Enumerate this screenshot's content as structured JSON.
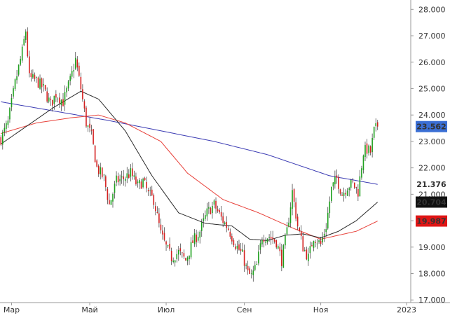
{
  "chart_data": {
    "type": "candlestick",
    "instrument_axis": "right",
    "ylim": [
      16.9,
      28.3
    ],
    "y_ticks": [
      {
        "value": 17.0,
        "label": "17.000"
      },
      {
        "value": 18.0,
        "label": "18.000"
      },
      {
        "value": 19.0,
        "label": "19.000"
      },
      {
        "value": 20.0,
        "label": "20.000"
      },
      {
        "value": 21.0,
        "label": "21.000"
      },
      {
        "value": 22.0,
        "label": "22.000"
      },
      {
        "value": 23.0,
        "label": "23.000"
      },
      {
        "value": 24.0,
        "label": "24.000"
      },
      {
        "value": 25.0,
        "label": "25.000"
      },
      {
        "value": 26.0,
        "label": "26.000"
      },
      {
        "value": 27.0,
        "label": "27.000"
      },
      {
        "value": 28.0,
        "label": "28.000"
      }
    ],
    "x_ticks": [
      {
        "index": 6,
        "label": "Мар"
      },
      {
        "index": 50,
        "label": "Май"
      },
      {
        "index": 93,
        "label": "Июл"
      },
      {
        "index": 137,
        "label": "Сен"
      },
      {
        "index": 180,
        "label": "Ноя"
      },
      {
        "index": 225,
        "label": "2023"
      }
    ],
    "anchors": [
      [
        0,
        23.1
      ],
      [
        4,
        23.7
      ],
      [
        8,
        25.2
      ],
      [
        12,
        26.4
      ],
      [
        14,
        27.2
      ],
      [
        16,
        25.4
      ],
      [
        20,
        25.3
      ],
      [
        24,
        25.0
      ],
      [
        28,
        24.4
      ],
      [
        31,
        24.8
      ],
      [
        35,
        24.5
      ],
      [
        39,
        25.3
      ],
      [
        42,
        26.1
      ],
      [
        45,
        25.0
      ],
      [
        48,
        23.7
      ],
      [
        51,
        23.2
      ],
      [
        54,
        22.0
      ],
      [
        58,
        21.6
      ],
      [
        61,
        20.6
      ],
      [
        65,
        21.5
      ],
      [
        69,
        21.6
      ],
      [
        73,
        21.8
      ],
      [
        77,
        21.3
      ],
      [
        80,
        21.5
      ],
      [
        83,
        21.0
      ],
      [
        86,
        20.8
      ],
      [
        90,
        19.5
      ],
      [
        93,
        19.0
      ],
      [
        96,
        18.6
      ],
      [
        100,
        18.8
      ],
      [
        104,
        18.5
      ],
      [
        108,
        19.2
      ],
      [
        112,
        19.6
      ],
      [
        116,
        20.3
      ],
      [
        120,
        20.6
      ],
      [
        124,
        20.1
      ],
      [
        128,
        19.7
      ],
      [
        132,
        19.1
      ],
      [
        136,
        18.7
      ],
      [
        139,
        18.0
      ],
      [
        141,
        17.9
      ],
      [
        144,
        18.3
      ],
      [
        147,
        19.4
      ],
      [
        151,
        19.4
      ],
      [
        155,
        19.2
      ],
      [
        158,
        18.5
      ],
      [
        161,
        19.6
      ],
      [
        164,
        21.1
      ],
      [
        167,
        19.8
      ],
      [
        170,
        19.0
      ],
      [
        173,
        18.6
      ],
      [
        176,
        19.4
      ],
      [
        180,
        19.1
      ],
      [
        183,
        19.8
      ],
      [
        186,
        21.2
      ],
      [
        189,
        21.6
      ],
      [
        192,
        21.0
      ],
      [
        195,
        21.3
      ],
      [
        198,
        21.4
      ],
      [
        201,
        21.1
      ],
      [
        204,
        22.6
      ],
      [
        206,
        22.7
      ],
      [
        208,
        22.6
      ],
      [
        210,
        23.4
      ],
      [
        212,
        23.56
      ]
    ],
    "series": [
      {
        "name": "",
        "color": "#3b3bb3",
        "width": 1,
        "values_at": [
          [
            0,
            24.5
          ],
          [
            60,
            23.8
          ],
          [
            120,
            23.0
          ],
          [
            150,
            22.5
          ],
          [
            185,
            21.7
          ],
          [
            212,
            21.376
          ]
        ],
        "last": 21.376
      },
      {
        "name": "",
        "color": "#e8413a",
        "width": 1,
        "values_at": [
          [
            0,
            23.3
          ],
          [
            20,
            23.7
          ],
          [
            40,
            23.9
          ],
          [
            55,
            24.0
          ],
          [
            70,
            23.7
          ],
          [
            90,
            23.0
          ],
          [
            105,
            21.8
          ],
          [
            125,
            20.8
          ],
          [
            145,
            20.3
          ],
          [
            165,
            19.7
          ],
          [
            180,
            19.3
          ],
          [
            190,
            19.45
          ],
          [
            200,
            19.6
          ],
          [
            212,
            19.987
          ]
        ],
        "last": 19.987
      },
      {
        "name": "",
        "color": "#2b2b2b",
        "width": 1,
        "values_at": [
          [
            0,
            22.9
          ],
          [
            15,
            23.6
          ],
          [
            30,
            24.3
          ],
          [
            45,
            24.9
          ],
          [
            55,
            24.6
          ],
          [
            70,
            23.4
          ],
          [
            85,
            21.7
          ],
          [
            100,
            20.3
          ],
          [
            115,
            19.9
          ],
          [
            130,
            19.8
          ],
          [
            140,
            19.3
          ],
          [
            150,
            19.25
          ],
          [
            160,
            19.45
          ],
          [
            170,
            19.5
          ],
          [
            180,
            19.35
          ],
          [
            190,
            19.6
          ],
          [
            200,
            20.0
          ],
          [
            212,
            20.704
          ]
        ],
        "last": 20.704
      }
    ],
    "last_close": 23.562,
    "price_labels": [
      {
        "text": "23.562",
        "bg": "#3b6fd4",
        "fg": "#ffffff"
      },
      {
        "text": "21.376",
        "bg": "#ffffff",
        "fg": "#1a2fb0",
        "border": "#ffffff"
      },
      {
        "text": "20.704",
        "bg": "#111111",
        "fg": "#ffffff"
      },
      {
        "text": "19.987",
        "bg": "#e01515",
        "fg": "#ffffff"
      }
    ],
    "up_color": "#1ea01e",
    "down_color": "#d42020",
    "wick_color": "#333333",
    "grid": false,
    "title": "",
    "xlabel": "",
    "ylabel": ""
  }
}
